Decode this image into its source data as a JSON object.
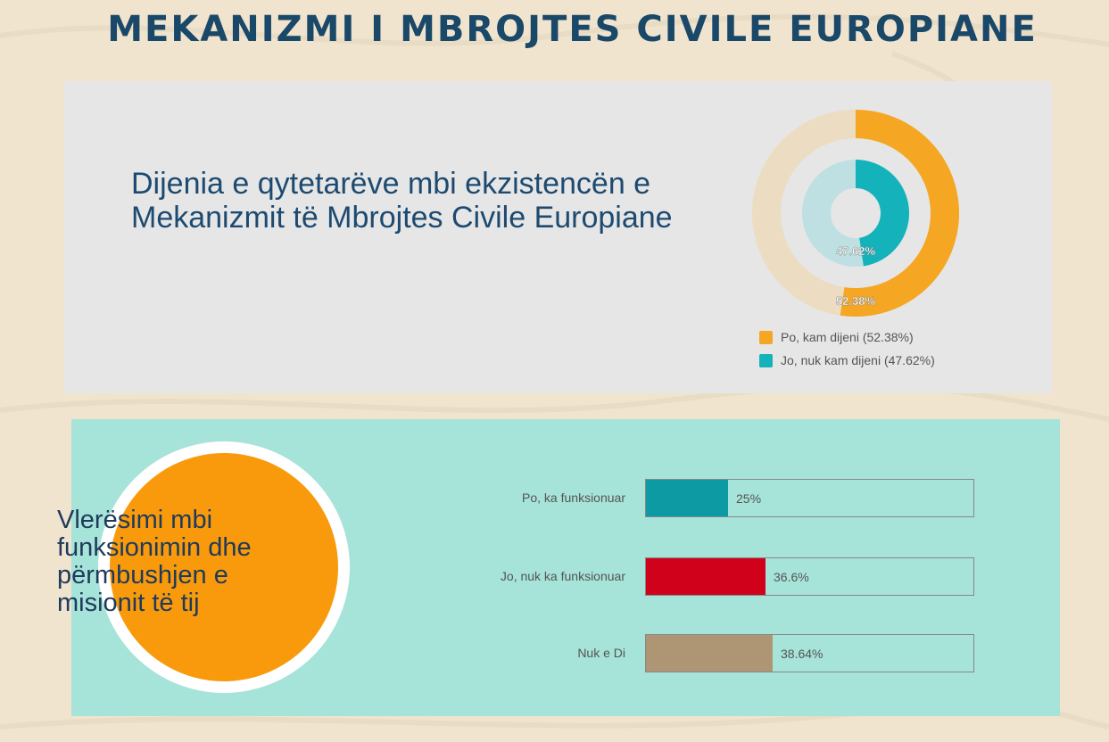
{
  "title": "Mekanizmi i Mbrojtes Civile Europiane",
  "section1": {
    "heading_line1": "Dijenia e qytetarëve mbi ekzistencën e",
    "heading_line2": "Mekanizmit të Mbrojtes Civile Europiane"
  },
  "section2": {
    "heading": "Vlerësimi mbi funksionimin dhe përmbushjen e misionit të  tij"
  },
  "chart_data": [
    {
      "type": "pie",
      "variant": "nested-donut",
      "categories": [
        "Po, kam dijeni (52.38%)",
        "Jo, nuk kam dijeni (47.62%)"
      ],
      "values": [
        52.38,
        47.62
      ],
      "value_labels": [
        "52.38%",
        "47.62%"
      ],
      "colors": [
        "#f5a623",
        "#14b3bb"
      ],
      "track_colors": [
        "#ecdcc1",
        "#bfe0e2"
      ],
      "legend_position": "bottom"
    },
    {
      "type": "bar",
      "orientation": "horizontal",
      "categories": [
        "Po, ka funksionuar",
        "Jo, nuk ka funksionuar",
        "Nuk e Di"
      ],
      "values": [
        25,
        36.6,
        38.64
      ],
      "value_labels": [
        "25%",
        "36.6%",
        "38.64%"
      ],
      "colors": [
        "#0e9aa2",
        "#d0021b",
        "#ae9674"
      ],
      "xlim": [
        0,
        100
      ]
    }
  ]
}
